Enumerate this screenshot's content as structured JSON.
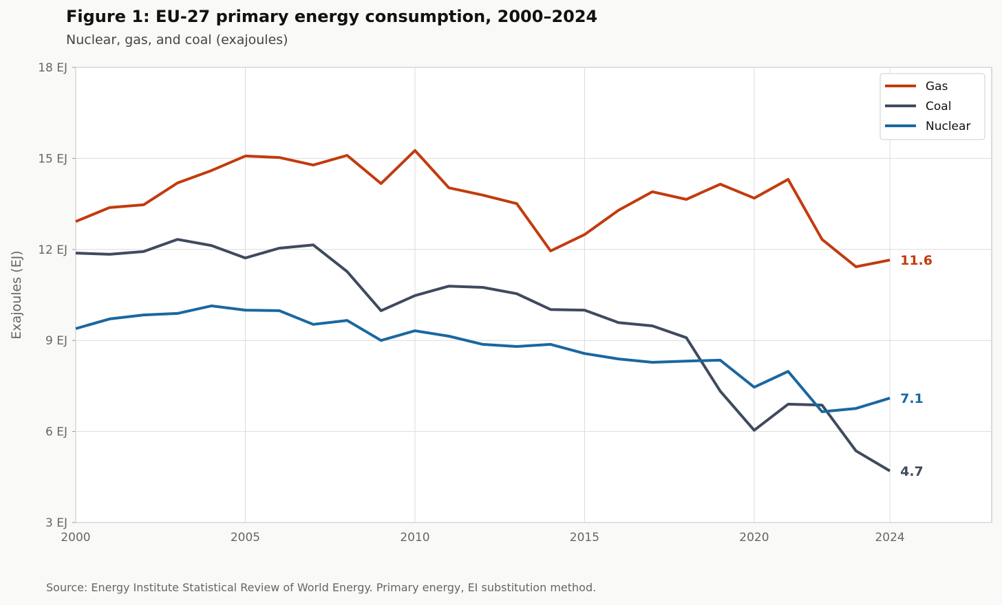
{
  "chart_data": {
    "type": "line",
    "title": "Figure 1: EU-27 primary energy consumption, 2000–2024",
    "subtitle": "Nuclear, gas, and coal (exajoules)",
    "xlabel": "",
    "ylabel": "Exajoules (EJ)",
    "xlim": [
      2000,
      2027
    ],
    "ylim": [
      3,
      18
    ],
    "grid": true,
    "legend_position": "top-right",
    "x_ticks": [
      2000,
      2005,
      2010,
      2015,
      2020,
      2024
    ],
    "x_tick_labels": [
      "2000",
      "2005",
      "2010",
      "2015",
      "2020",
      "2024"
    ],
    "y_ticks": [
      3,
      6,
      9,
      12,
      15,
      18
    ],
    "y_tick_labels": [
      "3 EJ",
      "6 EJ",
      "9 EJ",
      "12 EJ",
      "15 EJ",
      "18 EJ"
    ],
    "x": [
      2000,
      2001,
      2002,
      2003,
      2004,
      2005,
      2006,
      2007,
      2008,
      2009,
      2010,
      2011,
      2012,
      2013,
      2014,
      2015,
      2016,
      2017,
      2018,
      2019,
      2020,
      2021,
      2022,
      2023,
      2024
    ],
    "series": [
      {
        "name": "Gas",
        "color": "#c23b0d",
        "end_label": "11.6",
        "values": [
          12.92,
          13.38,
          13.47,
          14.19,
          14.6,
          15.08,
          15.03,
          14.78,
          15.1,
          14.17,
          15.26,
          14.03,
          13.79,
          13.51,
          11.95,
          12.49,
          13.29,
          13.9,
          13.65,
          14.15,
          13.69,
          14.31,
          12.33,
          11.43,
          11.65
        ]
      },
      {
        "name": "Coal",
        "color": "#3f4a5e",
        "end_label": "4.7",
        "values": [
          11.88,
          11.84,
          11.93,
          12.33,
          12.13,
          11.72,
          12.04,
          12.15,
          11.27,
          9.98,
          10.48,
          10.79,
          10.75,
          10.54,
          10.02,
          10.0,
          9.59,
          9.48,
          9.09,
          7.33,
          6.04,
          6.9,
          6.87,
          5.36,
          4.7
        ]
      },
      {
        "name": "Nuclear",
        "color": "#1a67a0",
        "end_label": "7.1",
        "values": [
          9.39,
          9.71,
          9.84,
          9.89,
          10.14,
          10.0,
          9.98,
          9.53,
          9.66,
          9.0,
          9.32,
          9.14,
          8.87,
          8.8,
          8.87,
          8.57,
          8.39,
          8.28,
          8.32,
          8.35,
          7.46,
          7.98,
          6.65,
          6.76,
          7.1
        ]
      }
    ]
  },
  "source": "Source: Energy Institute Statistical Review of World Energy. Primary energy, EI substitution method."
}
